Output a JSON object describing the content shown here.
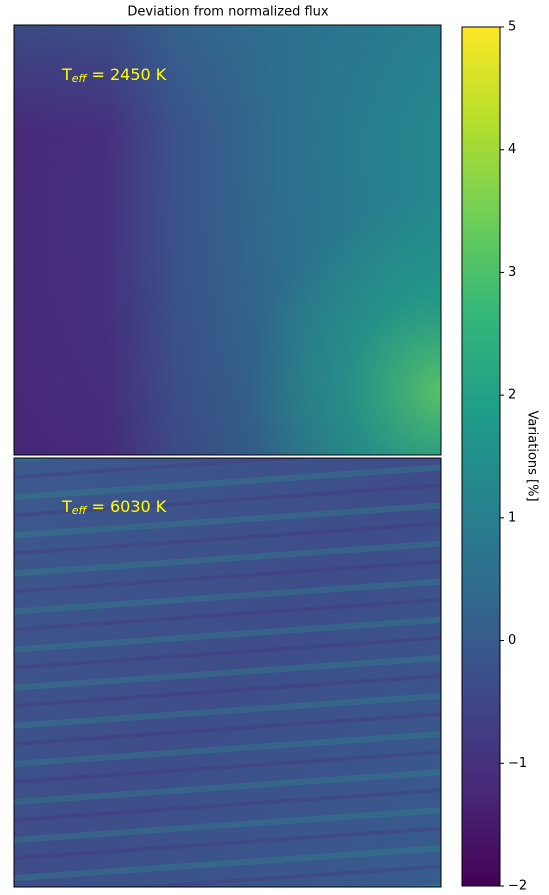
{
  "chart_data": {
    "type": "image",
    "title": "Deviation from normalized flux",
    "panels": [
      {
        "annotation": {
          "base": "T",
          "sub": "eff",
          "text": "= 2450 K"
        }
      },
      {
        "annotation": {
          "base": "T",
          "sub": "eff",
          "text": "= 6030 K"
        }
      }
    ],
    "colorbar": {
      "label": "Variations [%]",
      "colormap": "viridis",
      "lim": [
        -2,
        5
      ],
      "ticks": [
        {
          "value": -2,
          "label": "−2"
        },
        {
          "value": -1,
          "label": "−1"
        },
        0,
        1,
        2,
        3,
        4,
        5
      ]
    }
  }
}
